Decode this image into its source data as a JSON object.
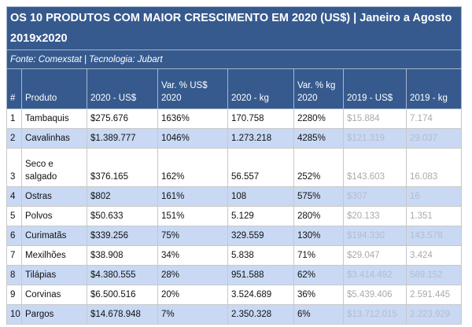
{
  "title": "OS 10 PRODUTOS COM MAIOR CRESCIMENTO EM 2020 (US$) | Janeiro a Agosto 2019x2020",
  "source": "Fonte: Comexstat | Tecnologia: Jubart",
  "headers": [
    "#",
    "Produto",
    "2020 - US$",
    "Var. % US$ 2020",
    "2020 - kg",
    "Var. % kg 2020",
    "2019 - US$",
    "2019 - kg"
  ],
  "rows": [
    [
      "1",
      "Tambaquis",
      "$275.676",
      "1636%",
      "170.758",
      "2280%",
      "$15.884",
      "7.174"
    ],
    [
      "2",
      "Cavalinhas",
      "$1.389.777",
      "1046%",
      "1.273.218",
      "4285%",
      "$121.319",
      "29.037"
    ],
    [
      "3",
      "Seco e salgado",
      "$376.165",
      "162%",
      "56.557",
      "252%",
      "$143.603",
      "16.083"
    ],
    [
      "4",
      "Ostras",
      "$802",
      "161%",
      "108",
      "575%",
      "$307",
      "16"
    ],
    [
      "5",
      "Polvos",
      "$50.633",
      "151%",
      "5.129",
      "280%",
      "$20.133",
      "1.351"
    ],
    [
      "6",
      "Curimatãs",
      "$339.256",
      "75%",
      "329.559",
      "130%",
      "$194.330",
      "143.578"
    ],
    [
      "7",
      "Mexilhões",
      "$38.908",
      "34%",
      "5.838",
      "71%",
      "$29.047",
      "3.424"
    ],
    [
      "8",
      "Tilápias",
      "$4.380.555",
      "28%",
      "951.588",
      "62%",
      "$3.414.492",
      "589.152"
    ],
    [
      "9",
      "Corvinas",
      "$6.500.516",
      "20%",
      "3.524.689",
      "36%",
      "$5.439.406",
      "2.591.445"
    ],
    [
      "10",
      "Pargos",
      "$14.678.948",
      "7%",
      "2.350.328",
      "6%",
      "$13.712.015",
      "2.223.929"
    ]
  ]
}
